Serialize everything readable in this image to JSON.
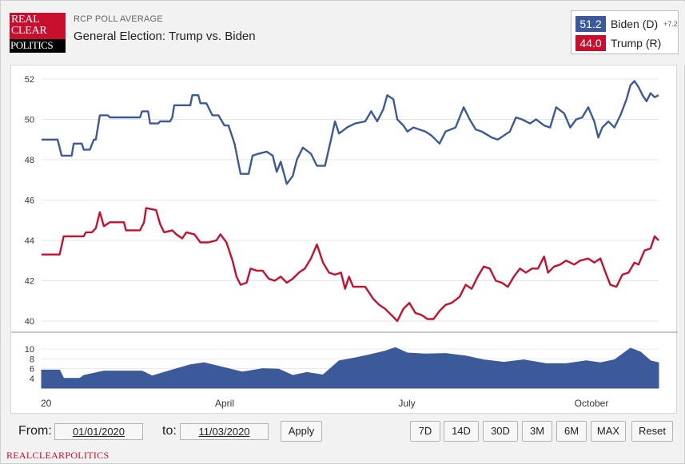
{
  "header": {
    "logo_text": [
      "REAL",
      "CLEAR",
      "POLITICS"
    ],
    "kicker": "RCP POLL AVERAGE",
    "title": "General Election: Trump vs. Biden"
  },
  "legend": [
    {
      "value": "51.2",
      "name": "Biden (D)",
      "spread": "+7.2",
      "color": "#3c5a99"
    },
    {
      "value": "44.0",
      "name": "Trump (R)",
      "spread": "",
      "color": "#c8102e"
    }
  ],
  "controls": {
    "from_label": "From:",
    "from_value": "01/01/2020",
    "to_label": "to:",
    "to_value": "11/03/2020",
    "apply_label": "Apply",
    "range_buttons": [
      "7D",
      "14D",
      "30D",
      "3M",
      "6M",
      "MAX",
      "Reset"
    ]
  },
  "footer": {
    "brand": "REALCLEARPOLITICS"
  },
  "chart_data": {
    "type": "line",
    "x_range": [
      "2020-01-01",
      "2020-11-03"
    ],
    "x_tick_labels": [
      "20",
      "April",
      "July",
      "October"
    ],
    "ylim": [
      40,
      52
    ],
    "y_ticks": [
      40,
      42,
      44,
      46,
      48,
      50,
      52
    ],
    "series": [
      {
        "name": "Biden (D)",
        "color": "#3c5a99",
        "points": [
          [
            "2020-01-01",
            49.0
          ],
          [
            "2020-01-09",
            49.0
          ],
          [
            "2020-01-11",
            48.2
          ],
          [
            "2020-01-16",
            48.2
          ],
          [
            "2020-01-17",
            48.8
          ],
          [
            "2020-01-21",
            48.8
          ],
          [
            "2020-01-22",
            48.5
          ],
          [
            "2020-01-25",
            48.5
          ],
          [
            "2020-01-27",
            49.0
          ],
          [
            "2020-01-28",
            49.0
          ],
          [
            "2020-01-30",
            50.2
          ],
          [
            "2020-02-03",
            50.2
          ],
          [
            "2020-02-04",
            50.1
          ],
          [
            "2020-02-19",
            50.1
          ],
          [
            "2020-02-20",
            50.4
          ],
          [
            "2020-02-23",
            50.4
          ],
          [
            "2020-02-24",
            49.8
          ],
          [
            "2020-02-28",
            49.8
          ],
          [
            "2020-02-29",
            49.9
          ],
          [
            "2020-03-05",
            49.9
          ],
          [
            "2020-03-06",
            50.1
          ],
          [
            "2020-03-07",
            50.7
          ],
          [
            "2020-03-15",
            50.7
          ],
          [
            "2020-03-16",
            51.2
          ],
          [
            "2020-03-19",
            51.2
          ],
          [
            "2020-03-20",
            50.8
          ],
          [
            "2020-03-23",
            50.8
          ],
          [
            "2020-03-26",
            50.2
          ],
          [
            "2020-03-29",
            50.2
          ],
          [
            "2020-04-01",
            49.7
          ],
          [
            "2020-04-03",
            49.7
          ],
          [
            "2020-04-06",
            48.8
          ],
          [
            "2020-04-09",
            47.3
          ],
          [
            "2020-04-13",
            47.3
          ],
          [
            "2020-04-15",
            48.2
          ],
          [
            "2020-04-18",
            48.3
          ],
          [
            "2020-04-22",
            48.4
          ],
          [
            "2020-04-25",
            48.2
          ],
          [
            "2020-04-27",
            47.4
          ],
          [
            "2020-04-29",
            47.9
          ],
          [
            "2020-05-02",
            46.8
          ],
          [
            "2020-05-05",
            47.2
          ],
          [
            "2020-05-07",
            48.0
          ],
          [
            "2020-05-10",
            48.6
          ],
          [
            "2020-05-14",
            48.3
          ],
          [
            "2020-05-17",
            47.7
          ],
          [
            "2020-05-21",
            47.7
          ],
          [
            "2020-05-24",
            49.0
          ],
          [
            "2020-05-26",
            49.9
          ],
          [
            "2020-05-28",
            49.3
          ],
          [
            "2020-06-01",
            49.6
          ],
          [
            "2020-06-05",
            49.8
          ],
          [
            "2020-06-10",
            49.9
          ],
          [
            "2020-06-13",
            50.4
          ],
          [
            "2020-06-16",
            49.9
          ],
          [
            "2020-06-19",
            50.5
          ],
          [
            "2020-06-21",
            51.2
          ],
          [
            "2020-06-24",
            51.0
          ],
          [
            "2020-06-26",
            50.0
          ],
          [
            "2020-06-29",
            49.7
          ],
          [
            "2020-07-01",
            49.4
          ],
          [
            "2020-07-04",
            49.6
          ],
          [
            "2020-07-10",
            49.4
          ],
          [
            "2020-07-13",
            49.2
          ],
          [
            "2020-07-17",
            48.8
          ],
          [
            "2020-07-20",
            49.4
          ],
          [
            "2020-07-25",
            49.6
          ],
          [
            "2020-07-29",
            50.6
          ],
          [
            "2020-08-01",
            50.0
          ],
          [
            "2020-08-04",
            49.5
          ],
          [
            "2020-08-07",
            49.4
          ],
          [
            "2020-08-12",
            49.1
          ],
          [
            "2020-08-15",
            49.0
          ],
          [
            "2020-08-18",
            49.2
          ],
          [
            "2020-08-21",
            49.4
          ],
          [
            "2020-08-24",
            50.1
          ],
          [
            "2020-08-27",
            50.0
          ],
          [
            "2020-08-31",
            49.8
          ],
          [
            "2020-09-03",
            50.0
          ],
          [
            "2020-09-07",
            49.7
          ],
          [
            "2020-09-10",
            49.6
          ],
          [
            "2020-09-13",
            50.6
          ],
          [
            "2020-09-17",
            50.3
          ],
          [
            "2020-09-20",
            49.6
          ],
          [
            "2020-09-23",
            50.0
          ],
          [
            "2020-09-26",
            50.1
          ],
          [
            "2020-09-29",
            50.6
          ],
          [
            "2020-10-02",
            49.9
          ],
          [
            "2020-10-04",
            49.1
          ],
          [
            "2020-10-06",
            49.6
          ],
          [
            "2020-10-09",
            49.9
          ],
          [
            "2020-10-12",
            49.6
          ],
          [
            "2020-10-15",
            50.2
          ],
          [
            "2020-10-18",
            51.0
          ],
          [
            "2020-10-20",
            51.7
          ],
          [
            "2020-10-22",
            51.9
          ],
          [
            "2020-10-24",
            51.6
          ],
          [
            "2020-10-26",
            51.2
          ],
          [
            "2020-10-28",
            50.9
          ],
          [
            "2020-10-30",
            51.3
          ],
          [
            "2020-11-01",
            51.1
          ],
          [
            "2020-11-03",
            51.2
          ]
        ]
      },
      {
        "name": "Trump (R)",
        "color": "#c8102e",
        "points": [
          [
            "2020-01-01",
            43.3
          ],
          [
            "2020-01-10",
            43.3
          ],
          [
            "2020-01-12",
            44.2
          ],
          [
            "2020-01-22",
            44.2
          ],
          [
            "2020-01-23",
            44.4
          ],
          [
            "2020-01-26",
            44.4
          ],
          [
            "2020-01-28",
            44.6
          ],
          [
            "2020-01-30",
            45.4
          ],
          [
            "2020-02-01",
            44.7
          ],
          [
            "2020-02-04",
            44.9
          ],
          [
            "2020-02-11",
            44.9
          ],
          [
            "2020-02-12",
            44.5
          ],
          [
            "2020-02-19",
            44.5
          ],
          [
            "2020-02-21",
            44.9
          ],
          [
            "2020-02-22",
            45.6
          ],
          [
            "2020-02-27",
            45.5
          ],
          [
            "2020-02-29",
            44.8
          ],
          [
            "2020-03-02",
            44.4
          ],
          [
            "2020-03-06",
            44.5
          ],
          [
            "2020-03-08",
            44.3
          ],
          [
            "2020-03-11",
            44.1
          ],
          [
            "2020-03-13",
            44.4
          ],
          [
            "2020-03-17",
            44.3
          ],
          [
            "2020-03-20",
            43.9
          ],
          [
            "2020-03-24",
            43.9
          ],
          [
            "2020-03-28",
            44.0
          ],
          [
            "2020-03-30",
            44.3
          ],
          [
            "2020-04-02",
            43.9
          ],
          [
            "2020-04-05",
            43.0
          ],
          [
            "2020-04-07",
            42.2
          ],
          [
            "2020-04-09",
            41.8
          ],
          [
            "2020-04-12",
            41.9
          ],
          [
            "2020-04-14",
            42.6
          ],
          [
            "2020-04-17",
            42.5
          ],
          [
            "2020-04-20",
            42.5
          ],
          [
            "2020-04-23",
            42.1
          ],
          [
            "2020-04-26",
            42.0
          ],
          [
            "2020-04-29",
            42.2
          ],
          [
            "2020-05-02",
            41.9
          ],
          [
            "2020-05-05",
            42.1
          ],
          [
            "2020-05-08",
            42.4
          ],
          [
            "2020-05-11",
            42.6
          ],
          [
            "2020-05-14",
            43.1
          ],
          [
            "2020-05-17",
            43.8
          ],
          [
            "2020-05-20",
            42.9
          ],
          [
            "2020-05-23",
            42.4
          ],
          [
            "2020-05-26",
            42.3
          ],
          [
            "2020-05-29",
            42.4
          ],
          [
            "2020-05-31",
            41.6
          ],
          [
            "2020-06-02",
            42.2
          ],
          [
            "2020-06-04",
            41.7
          ],
          [
            "2020-06-10",
            41.7
          ],
          [
            "2020-06-14",
            41.1
          ],
          [
            "2020-06-17",
            40.8
          ],
          [
            "2020-06-20",
            40.6
          ],
          [
            "2020-06-23",
            40.3
          ],
          [
            "2020-06-26",
            40.0
          ],
          [
            "2020-06-29",
            40.6
          ],
          [
            "2020-07-02",
            40.9
          ],
          [
            "2020-07-05",
            40.4
          ],
          [
            "2020-07-08",
            40.3
          ],
          [
            "2020-07-11",
            40.1
          ],
          [
            "2020-07-14",
            40.1
          ],
          [
            "2020-07-17",
            40.5
          ],
          [
            "2020-07-20",
            40.8
          ],
          [
            "2020-07-23",
            40.9
          ],
          [
            "2020-07-27",
            41.2
          ],
          [
            "2020-07-30",
            41.8
          ],
          [
            "2020-08-02",
            41.6
          ],
          [
            "2020-08-05",
            42.2
          ],
          [
            "2020-08-08",
            42.7
          ],
          [
            "2020-08-11",
            42.6
          ],
          [
            "2020-08-14",
            42.0
          ],
          [
            "2020-08-17",
            41.9
          ],
          [
            "2020-08-20",
            41.7
          ],
          [
            "2020-08-23",
            42.2
          ],
          [
            "2020-08-26",
            42.6
          ],
          [
            "2020-08-29",
            42.4
          ],
          [
            "2020-09-01",
            42.6
          ],
          [
            "2020-09-04",
            42.6
          ],
          [
            "2020-09-07",
            43.2
          ],
          [
            "2020-09-09",
            42.4
          ],
          [
            "2020-09-12",
            42.7
          ],
          [
            "2020-09-15",
            42.8
          ],
          [
            "2020-09-18",
            43.0
          ],
          [
            "2020-09-22",
            42.8
          ],
          [
            "2020-09-25",
            43.0
          ],
          [
            "2020-09-29",
            43.1
          ],
          [
            "2020-10-02",
            42.9
          ],
          [
            "2020-10-05",
            43.1
          ],
          [
            "2020-10-08",
            42.3
          ],
          [
            "2020-10-10",
            41.8
          ],
          [
            "2020-10-13",
            41.7
          ],
          [
            "2020-10-16",
            42.3
          ],
          [
            "2020-10-19",
            42.4
          ],
          [
            "2020-10-22",
            42.9
          ],
          [
            "2020-10-24",
            42.8
          ],
          [
            "2020-10-27",
            43.5
          ],
          [
            "2020-10-30",
            43.6
          ],
          [
            "2020-11-01",
            44.2
          ],
          [
            "2020-11-03",
            44.0
          ]
        ]
      }
    ],
    "navigator": {
      "type": "area",
      "color": "#3c5a99",
      "y_ticks": [
        4,
        6,
        8,
        10
      ],
      "ylim": [
        2,
        11
      ],
      "points": [
        [
          "2020-01-01",
          5.7
        ],
        [
          "2020-01-10",
          5.7
        ],
        [
          "2020-01-12",
          4.0
        ],
        [
          "2020-01-20",
          4.0
        ],
        [
          "2020-01-22",
          4.6
        ],
        [
          "2020-02-01",
          5.5
        ],
        [
          "2020-02-20",
          5.5
        ],
        [
          "2020-02-25",
          4.5
        ],
        [
          "2020-03-05",
          5.6
        ],
        [
          "2020-03-15",
          6.8
        ],
        [
          "2020-03-22",
          7.2
        ],
        [
          "2020-04-01",
          6.2
        ],
        [
          "2020-04-10",
          5.3
        ],
        [
          "2020-04-20",
          6.0
        ],
        [
          "2020-04-28",
          5.9
        ],
        [
          "2020-05-05",
          4.6
        ],
        [
          "2020-05-12",
          5.2
        ],
        [
          "2020-05-20",
          4.7
        ],
        [
          "2020-05-28",
          7.6
        ],
        [
          "2020-06-05",
          8.2
        ],
        [
          "2020-06-12",
          8.8
        ],
        [
          "2020-06-20",
          9.6
        ],
        [
          "2020-06-25",
          10.3
        ],
        [
          "2020-07-01",
          9.2
        ],
        [
          "2020-07-10",
          9.0
        ],
        [
          "2020-07-20",
          9.1
        ],
        [
          "2020-07-30",
          8.6
        ],
        [
          "2020-08-08",
          7.8
        ],
        [
          "2020-08-18",
          7.3
        ],
        [
          "2020-08-28",
          7.8
        ],
        [
          "2020-09-08",
          7.0
        ],
        [
          "2020-09-18",
          7.0
        ],
        [
          "2020-09-28",
          7.6
        ],
        [
          "2020-10-05",
          7.2
        ],
        [
          "2020-10-12",
          7.8
        ],
        [
          "2020-10-20",
          10.2
        ],
        [
          "2020-10-25",
          9.4
        ],
        [
          "2020-10-30",
          7.6
        ],
        [
          "2020-11-03",
          7.2
        ]
      ]
    }
  }
}
